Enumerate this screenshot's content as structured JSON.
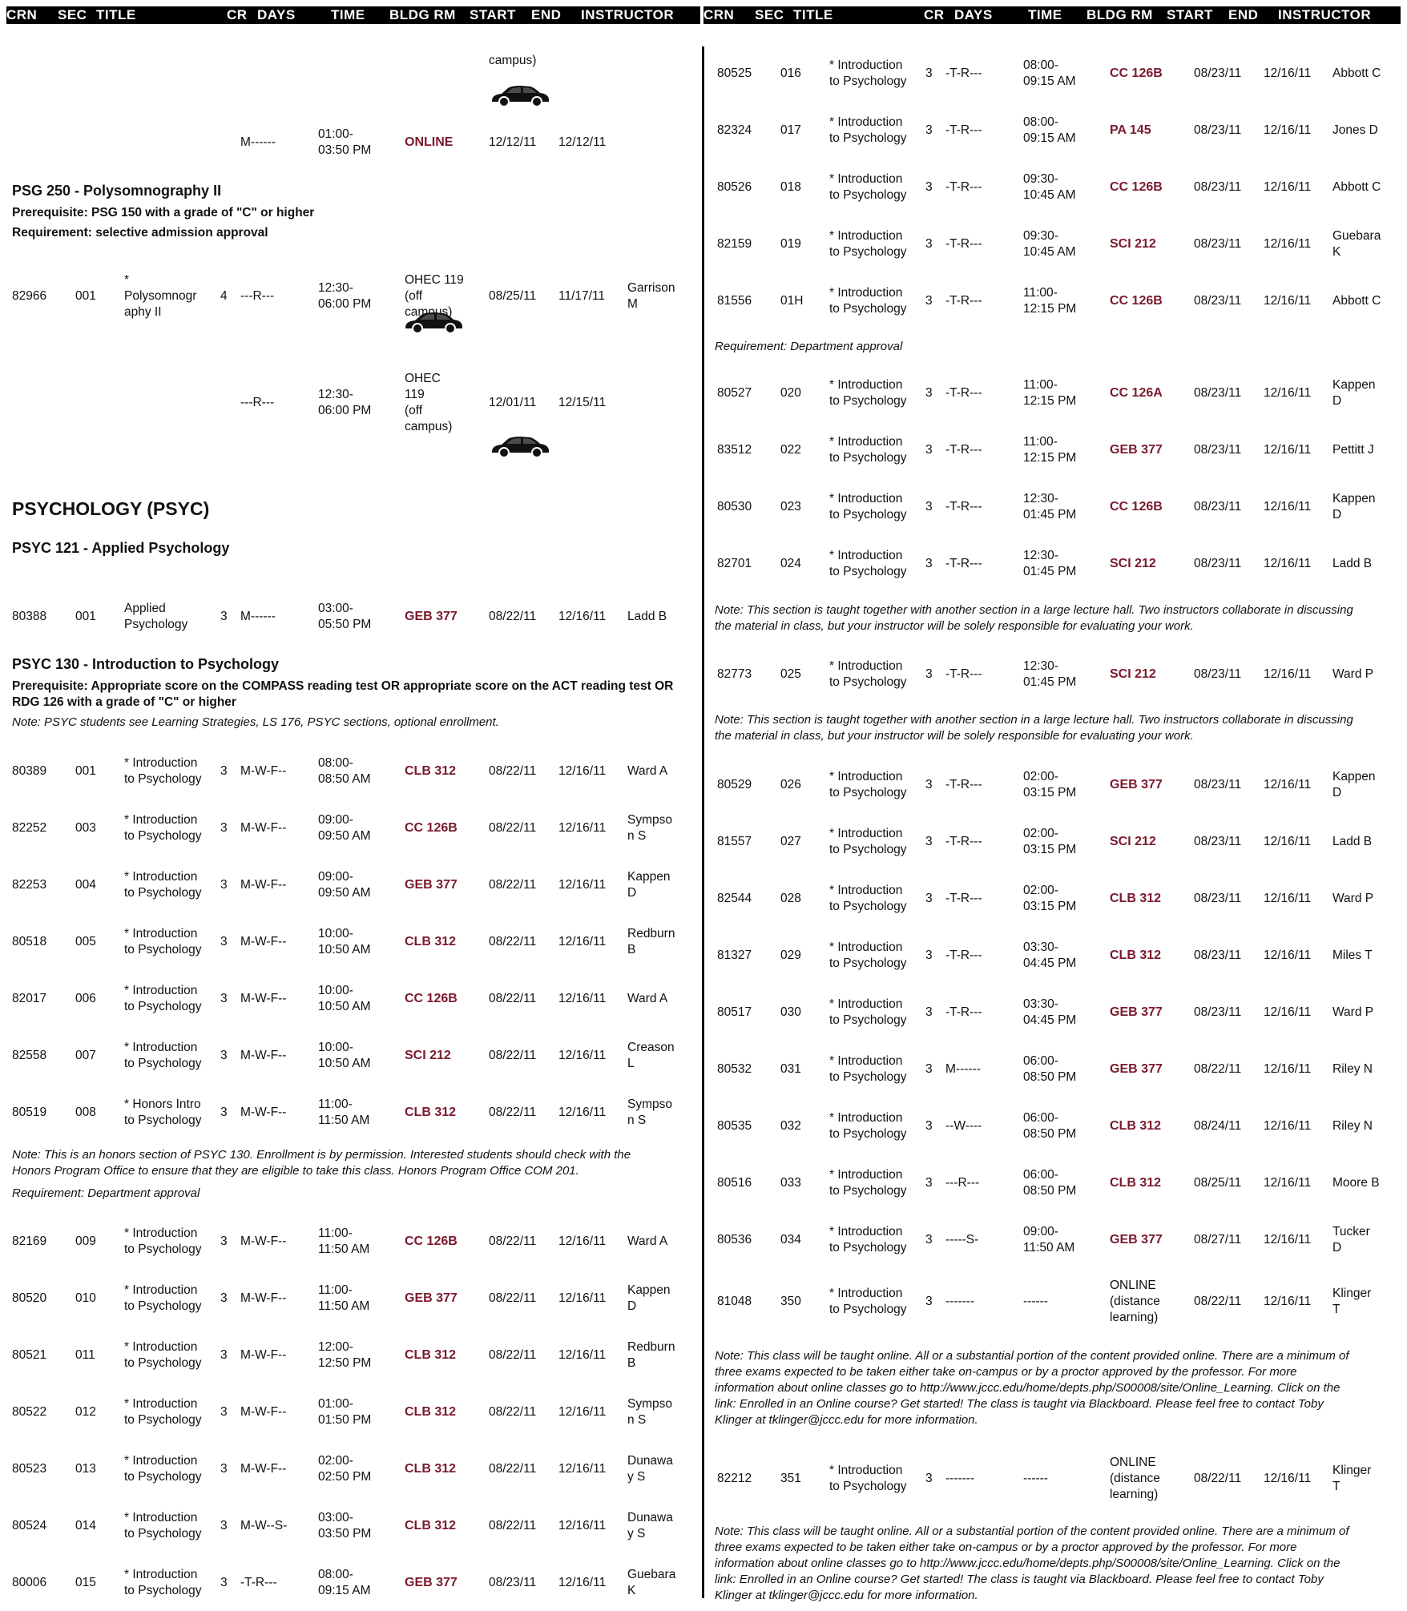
{
  "header": [
    "CRN",
    "SEC",
    "TITLE",
    "CR",
    "DAYS",
    "TIME",
    "BLDG RM",
    "START",
    "END",
    "INSTRUCTOR"
  ],
  "left": {
    "top_fragment": "campus)",
    "psg_row": {
      "days": "M------",
      "time": "01:00-\n03:50 PM",
      "room": "ONLINE",
      "start": "12/12/11",
      "end": "12/12/11"
    },
    "psg250": {
      "title": "PSG 250 - Polysomnography II",
      "prereq": "Prerequisite: PSG 150 with a grade of \"C\" or higher",
      "req": "Requirement: selective admission approval",
      "row1": {
        "crn": "82966",
        "sec": "001",
        "title": "*\nPolysomnogr\naphy II",
        "cr": "4",
        "days": "---R---",
        "time": "12:30-\n06:00 PM",
        "room": "OHEC 119\n (off\ncampus)",
        "start": "08/25/11",
        "end": "11/17/11",
        "instr": "Garrison\nM"
      },
      "row2": {
        "days": "---R---",
        "time": "12:30-\n06:00 PM",
        "room": "OHEC\n119\n (off\ncampus)",
        "start": "12/01/11",
        "end": "12/15/11"
      }
    },
    "psych_heading": "PSYCHOLOGY (PSYC)",
    "psyc121": {
      "title": "PSYC 121 - Applied Psychology",
      "row": {
        "crn": "80388",
        "sec": "001",
        "title": "Applied\nPsychology",
        "cr": "3",
        "days": "M------",
        "time": "03:00-\n05:50 PM",
        "room": "GEB 377",
        "start": "08/22/11",
        "end": "12/16/11",
        "instr": "Ladd B"
      }
    },
    "psyc130": {
      "title": "PSYC 130 - Introduction to Psychology",
      "prereq": "Prerequisite: Appropriate score on the COMPASS reading test OR appropriate score on the ACT reading test OR\nRDG 126 with a grade of \"C\" or higher",
      "note": "Note: PSYC students see Learning Strategies, LS 176, PSYC sections, optional enrollment."
    },
    "rows_a": [
      {
        "crn": "80389",
        "sec": "001",
        "title": "* Introduction\nto Psychology",
        "cr": "3",
        "days": "M-W-F--",
        "time": "08:00-\n08:50 AM",
        "room": "CLB 312",
        "start": "08/22/11",
        "end": "12/16/11",
        "instr": "Ward A"
      },
      {
        "crn": "82252",
        "sec": "003",
        "title": "* Introduction\nto Psychology",
        "cr": "3",
        "days": "M-W-F--",
        "time": "09:00-\n09:50 AM",
        "room": "CC 126B",
        "start": "08/22/11",
        "end": "12/16/11",
        "instr": "Sympso\nn S"
      },
      {
        "crn": "82253",
        "sec": "004",
        "title": "* Introduction\nto Psychology",
        "cr": "3",
        "days": "M-W-F--",
        "time": "09:00-\n09:50 AM",
        "room": "GEB 377",
        "start": "08/22/11",
        "end": "12/16/11",
        "instr": "Kappen\nD"
      },
      {
        "crn": "80518",
        "sec": "005",
        "title": "* Introduction\nto Psychology",
        "cr": "3",
        "days": "M-W-F--",
        "time": "10:00-\n10:50 AM",
        "room": "CLB 312",
        "start": "08/22/11",
        "end": "12/16/11",
        "instr": "Redburn\nB"
      },
      {
        "crn": "82017",
        "sec": "006",
        "title": "* Introduction\nto Psychology",
        "cr": "3",
        "days": "M-W-F--",
        "time": "10:00-\n10:50 AM",
        "room": "CC 126B",
        "start": "08/22/11",
        "end": "12/16/11",
        "instr": "Ward A"
      },
      {
        "crn": "82558",
        "sec": "007",
        "title": "* Introduction\nto Psychology",
        "cr": "3",
        "days": "M-W-F--",
        "time": "10:00-\n10:50 AM",
        "room": "SCI 212",
        "start": "08/22/11",
        "end": "12/16/11",
        "instr": "Creason\nL"
      },
      {
        "crn": "80519",
        "sec": "008",
        "title": "* Honors Intro\nto Psychology",
        "cr": "3",
        "days": "M-W-F--",
        "time": "11:00-\n11:50 AM",
        "room": "CLB 312",
        "start": "08/22/11",
        "end": "12/16/11",
        "instr": "Sympso\nn S"
      }
    ],
    "honors_note": "Note: This is an honors section of PSYC 130. Enrollment is by permission. Interested students should check with the\nHonors Program Office to ensure that they are eligible to take this class. Honors Program Office COM 201.",
    "honors_req": "Requirement: Department approval",
    "rows_b": [
      {
        "crn": "82169",
        "sec": "009",
        "title": "* Introduction\nto Psychology",
        "cr": "3",
        "days": "M-W-F--",
        "time": "11:00-\n11:50 AM",
        "room": "CC 126B",
        "start": "08/22/11",
        "end": "12/16/11",
        "instr": "Ward A"
      },
      {
        "crn": "80520",
        "sec": "010",
        "title": "* Introduction\nto Psychology",
        "cr": "3",
        "days": "M-W-F--",
        "time": "11:00-\n11:50 AM",
        "room": "GEB 377",
        "start": "08/22/11",
        "end": "12/16/11",
        "instr": "Kappen\nD"
      },
      {
        "crn": "80521",
        "sec": "011",
        "title": "* Introduction\nto Psychology",
        "cr": "3",
        "days": "M-W-F--",
        "time": "12:00-\n12:50 PM",
        "room": "CLB 312",
        "start": "08/22/11",
        "end": "12/16/11",
        "instr": "Redburn\nB"
      },
      {
        "crn": "80522",
        "sec": "012",
        "title": "* Introduction\nto Psychology",
        "cr": "3",
        "days": "M-W-F--",
        "time": "01:00-\n01:50 PM",
        "room": "CLB 312",
        "start": "08/22/11",
        "end": "12/16/11",
        "instr": "Sympso\nn S"
      },
      {
        "crn": "80523",
        "sec": "013",
        "title": "* Introduction\nto Psychology",
        "cr": "3",
        "days": "M-W-F--",
        "time": "02:00-\n02:50 PM",
        "room": "CLB 312",
        "start": "08/22/11",
        "end": "12/16/11",
        "instr": "Dunawa\ny S"
      },
      {
        "crn": "80524",
        "sec": "014",
        "title": "* Introduction\nto Psychology",
        "cr": "3",
        "days": "M-W--S-",
        "time": "03:00-\n03:50 PM",
        "room": "CLB 312",
        "start": "08/22/11",
        "end": "12/16/11",
        "instr": "Dunawa\ny S"
      },
      {
        "crn": "80006",
        "sec": "015",
        "title": "* Introduction\nto Psychology",
        "cr": "3",
        "days": "-T-R---",
        "time": "08:00-\n09:15 AM",
        "room": "GEB 377",
        "start": "08/23/11",
        "end": "12/16/11",
        "instr": "Guebara\nK"
      }
    ]
  },
  "right": {
    "rows_a": [
      {
        "crn": "80525",
        "sec": "016",
        "title": "* Introduction\nto Psychology",
        "cr": "3",
        "days": "-T-R---",
        "time": "08:00-\n09:15 AM",
        "room": "CC 126B",
        "start": "08/23/11",
        "end": "12/16/11",
        "instr": "Abbott C"
      },
      {
        "crn": "82324",
        "sec": "017",
        "title": "* Introduction\nto Psychology",
        "cr": "3",
        "days": "-T-R---",
        "time": "08:00-\n09:15 AM",
        "room": "PA 145",
        "start": "08/23/11",
        "end": "12/16/11",
        "instr": "Jones D"
      },
      {
        "crn": "80526",
        "sec": "018",
        "title": "* Introduction\nto Psychology",
        "cr": "3",
        "days": "-T-R---",
        "time": "09:30-\n10:45 AM",
        "room": "CC 126B",
        "start": "08/23/11",
        "end": "12/16/11",
        "instr": "Abbott C"
      },
      {
        "crn": "82159",
        "sec": "019",
        "title": "* Introduction\nto Psychology",
        "cr": "3",
        "days": "-T-R---",
        "time": "09:30-\n10:45 AM",
        "room": "SCI 212",
        "start": "08/23/11",
        "end": "12/16/11",
        "instr": "Guebara\nK"
      },
      {
        "crn": "81556",
        "sec": "01H",
        "title": "* Introduction\nto Psychology",
        "cr": "3",
        "days": "-T-R---",
        "time": "11:00-\n12:15 PM",
        "room": "CC 126B",
        "start": "08/23/11",
        "end": "12/16/11",
        "instr": "Abbott C"
      }
    ],
    "req1": "Requirement: Department approval",
    "rows_b": [
      {
        "crn": "80527",
        "sec": "020",
        "title": "* Introduction\nto Psychology",
        "cr": "3",
        "days": "-T-R---",
        "time": "11:00-\n12:15 PM",
        "room": "CC 126A",
        "start": "08/23/11",
        "end": "12/16/11",
        "instr": "Kappen\nD"
      },
      {
        "crn": "83512",
        "sec": "022",
        "title": "* Introduction\nto Psychology",
        "cr": "3",
        "days": "-T-R---",
        "time": "11:00-\n12:15 PM",
        "room": "GEB 377",
        "start": "08/23/11",
        "end": "12/16/11",
        "instr": "Pettitt J"
      },
      {
        "crn": "80530",
        "sec": "023",
        "title": "* Introduction\nto Psychology",
        "cr": "3",
        "days": "-T-R---",
        "time": "12:30-\n01:45 PM",
        "room": "CC 126B",
        "start": "08/23/11",
        "end": "12/16/11",
        "instr": "Kappen\nD"
      },
      {
        "crn": "82701",
        "sec": "024",
        "title": "* Introduction\nto Psychology",
        "cr": "3",
        "days": "-T-R---",
        "time": "12:30-\n01:45 PM",
        "room": "SCI 212",
        "start": "08/23/11",
        "end": "12/16/11",
        "instr": "Ladd B"
      }
    ],
    "note1": "Note: This section is taught together with another section in a large lecture hall. Two instructors collaborate in discussing\nthe material in class, but your instructor will be solely responsible for evaluating your work.",
    "row_025": {
      "crn": "82773",
      "sec": "025",
      "title": "* Introduction\nto Psychology",
      "cr": "3",
      "days": "-T-R---",
      "time": "12:30-\n01:45 PM",
      "room": "SCI 212",
      "start": "08/23/11",
      "end": "12/16/11",
      "instr": "Ward P"
    },
    "note2": "Note: This section is taught together with another section in a large lecture hall. Two instructors collaborate in discussing\nthe material in class, but your instructor will be solely responsible for evaluating your work.",
    "rows_c": [
      {
        "crn": "80529",
        "sec": "026",
        "title": "* Introduction\nto Psychology",
        "cr": "3",
        "days": "-T-R---",
        "time": "02:00-\n03:15 PM",
        "room": "GEB 377",
        "start": "08/23/11",
        "end": "12/16/11",
        "instr": "Kappen\nD"
      },
      {
        "crn": "81557",
        "sec": "027",
        "title": "* Introduction\nto Psychology",
        "cr": "3",
        "days": "-T-R---",
        "time": "02:00-\n03:15 PM",
        "room": "SCI 212",
        "start": "08/23/11",
        "end": "12/16/11",
        "instr": "Ladd B"
      },
      {
        "crn": "82544",
        "sec": "028",
        "title": "* Introduction\nto Psychology",
        "cr": "3",
        "days": "-T-R---",
        "time": "02:00-\n03:15 PM",
        "room": "CLB 312",
        "start": "08/23/11",
        "end": "12/16/11",
        "instr": "Ward P"
      },
      {
        "crn": "81327",
        "sec": "029",
        "title": "* Introduction\nto Psychology",
        "cr": "3",
        "days": "-T-R---",
        "time": "03:30-\n04:45 PM",
        "room": "CLB 312",
        "start": "08/23/11",
        "end": "12/16/11",
        "instr": "Miles T"
      },
      {
        "crn": "80517",
        "sec": "030",
        "title": "* Introduction\nto Psychology",
        "cr": "3",
        "days": "-T-R---",
        "time": "03:30-\n04:45 PM",
        "room": "GEB 377",
        "start": "08/23/11",
        "end": "12/16/11",
        "instr": "Ward P"
      },
      {
        "crn": "80532",
        "sec": "031",
        "title": "* Introduction\nto Psychology",
        "cr": "3",
        "days": "M------",
        "time": "06:00-\n08:50 PM",
        "room": "GEB 377",
        "start": "08/22/11",
        "end": "12/16/11",
        "instr": "Riley N"
      },
      {
        "crn": "80535",
        "sec": "032",
        "title": "* Introduction\nto Psychology",
        "cr": "3",
        "days": "--W----",
        "time": "06:00-\n08:50 PM",
        "room": "CLB 312",
        "start": "08/24/11",
        "end": "12/16/11",
        "instr": "Riley N"
      },
      {
        "crn": "80516",
        "sec": "033",
        "title": "* Introduction\nto Psychology",
        "cr": "3",
        "days": "---R---",
        "time": "06:00-\n08:50 PM",
        "room": "CLB 312",
        "start": "08/25/11",
        "end": "12/16/11",
        "instr": "Moore B"
      },
      {
        "crn": "80536",
        "sec": "034",
        "title": "* Introduction\nto Psychology",
        "cr": "3",
        "days": "-----S-",
        "time": "09:00-\n11:50 AM",
        "room": "GEB 377",
        "start": "08/27/11",
        "end": "12/16/11",
        "instr": "Tucker\nD"
      }
    ],
    "row_350": {
      "crn": "81048",
      "sec": "350",
      "title": "* Introduction\nto Psychology",
      "cr": "3",
      "days": "-------",
      "time": "------",
      "room": "ONLINE\n (distance\nlearning)",
      "start": "08/22/11",
      "end": "12/16/11",
      "instr": "Klinger\nT"
    },
    "note3": "Note: This class will be taught online. All or a substantial portion of the content provided online. There are a minimum of\nthree exams expected to be taken either take on-campus or by a proctor approved by the professor. For more\ninformation about online classes go to http://www.jccc.edu/home/depts.php/S00008/site/Online_Learning. Click on the\nlink: Enrolled in an Online course? Get started! The class is taught via Blackboard. Please feel free to contact Toby\nKlinger at tklinger@jccc.edu for more information.",
    "row_351": {
      "crn": "82212",
      "sec": "351",
      "title": "* Introduction\nto Psychology",
      "cr": "3",
      "days": "-------",
      "time": "------",
      "room": "ONLINE\n (distance\nlearning)",
      "start": "08/22/11",
      "end": "12/16/11",
      "instr": "Klinger\nT"
    },
    "note4": "Note: This class will be taught online. All or a substantial portion of the content provided online. There are a minimum of\nthree exams expected to be taken either take on-campus or by a proctor approved by the professor. For more\ninformation about online classes go to http://www.jccc.edu/home/depts.php/S00008/site/Online_Learning. Click on the\nlink: Enrolled in an Online course? Get started! The class is taught via Blackboard. Please feel free to contact Toby\nKlinger at tklinger@jccc.edu for more information."
  }
}
